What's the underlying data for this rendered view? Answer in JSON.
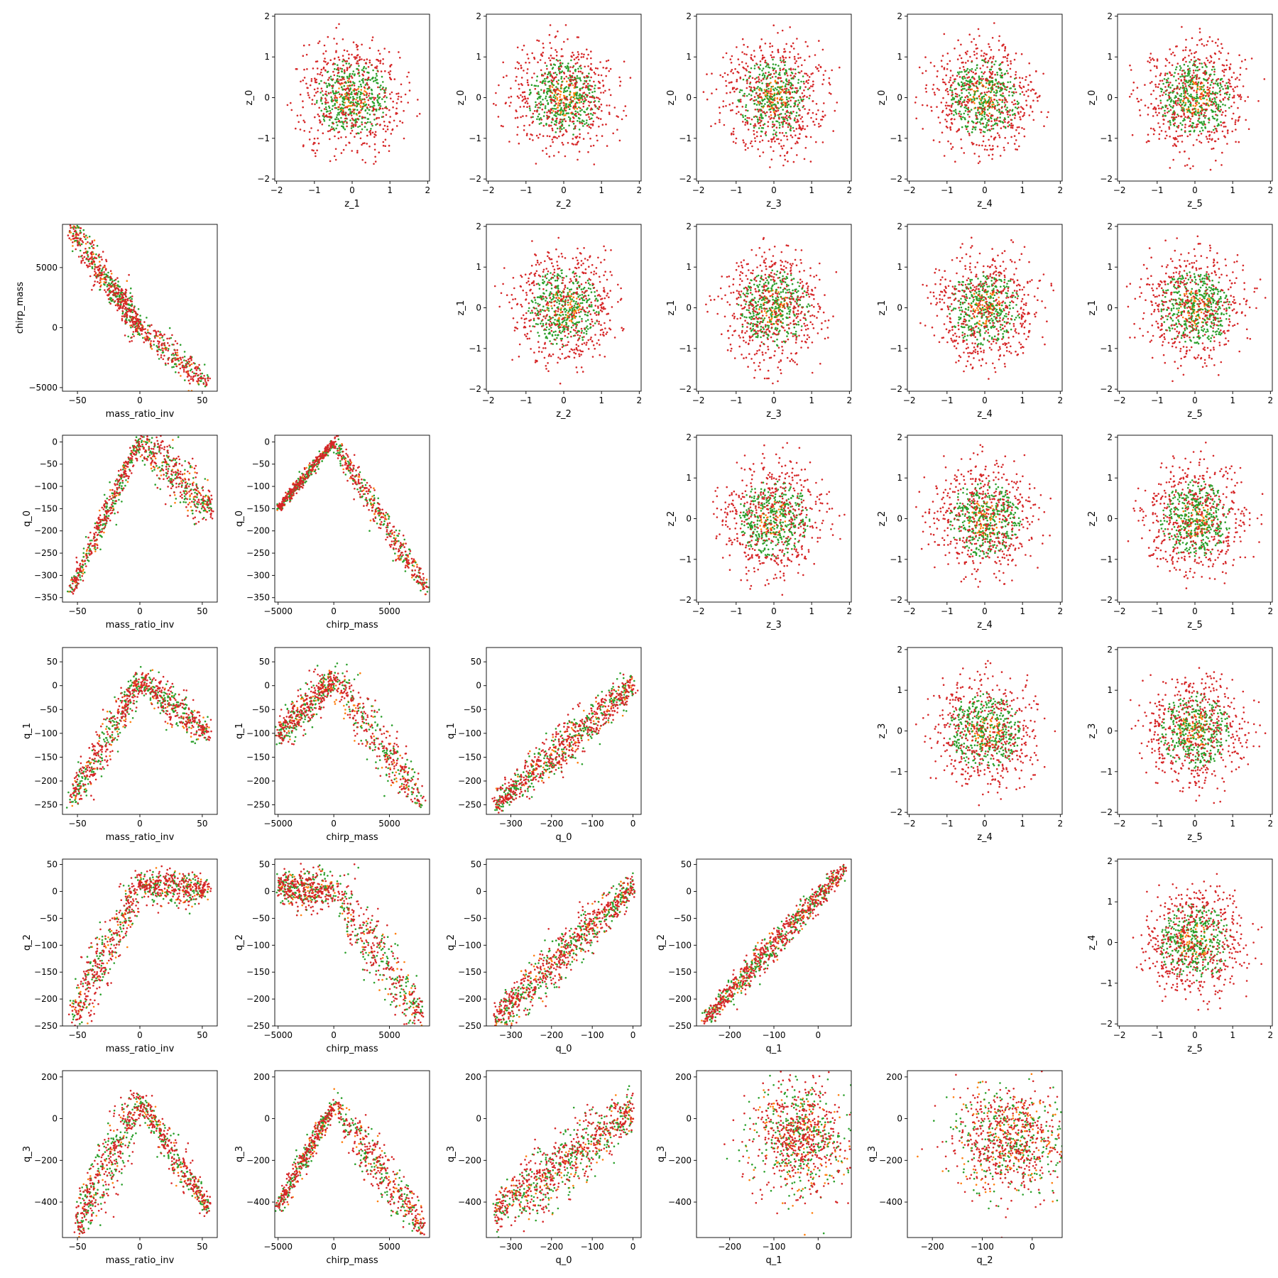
{
  "chart_data": {
    "type": "scatter",
    "layout": "pairplot-grid",
    "grid": false,
    "marker_size": "small",
    "series": [
      {
        "color": "#d62728"
      },
      {
        "color": "#2ca02c"
      },
      {
        "color": "#ff7f0e"
      }
    ],
    "variables": {
      "mass_ratio_inv": {
        "label": "mass_ratio_inv",
        "lim": [
          -62,
          62
        ],
        "ticks": [
          -50,
          0,
          50
        ]
      },
      "chirp_mass": {
        "label": "chirp_mass",
        "lim": [
          -5300,
          8600
        ],
        "ticks": [
          -5000,
          0,
          5000
        ]
      },
      "q_0_x": {
        "label": "q_0",
        "lim": [
          -360,
          20
        ],
        "ticks": [
          -300,
          -200,
          -100,
          0
        ]
      },
      "q_0_y": {
        "label": "q_0",
        "lim": [
          -360,
          15
        ],
        "ticks": [
          0,
          -50,
          -100,
          -150,
          -200,
          -250,
          -300,
          -350
        ]
      },
      "q_1_x": {
        "label": "q_1",
        "lim": [
          -275,
          75
        ],
        "ticks": [
          -200,
          -100,
          0
        ]
      },
      "q_1_y": {
        "label": "q_1",
        "lim": [
          -270,
          80
        ],
        "ticks": [
          50,
          0,
          -50,
          -100,
          -150,
          -200,
          -250
        ]
      },
      "q_2_x": {
        "label": "q_2",
        "lim": [
          -250,
          60
        ],
        "ticks": [
          -200,
          -100,
          0
        ]
      },
      "q_2_y": {
        "label": "q_2",
        "lim": [
          -250,
          60
        ],
        "ticks": [
          50,
          0,
          -50,
          -100,
          -150,
          -200,
          -250
        ]
      },
      "q_3": {
        "label": "q_3",
        "lim": [
          -570,
          230
        ],
        "ticks": [
          200,
          0,
          -200,
          -400
        ]
      },
      "z": {
        "lim": [
          -2.05,
          2.05
        ],
        "ticks": [
          -2,
          -1,
          0,
          1,
          2
        ]
      }
    },
    "panels": [
      {
        "row": 0,
        "col": 1,
        "x": "z_1",
        "y": "z_0",
        "dist": "gauss"
      },
      {
        "row": 0,
        "col": 2,
        "x": "z_2",
        "y": "z_0",
        "dist": "gauss"
      },
      {
        "row": 0,
        "col": 3,
        "x": "z_3",
        "y": "z_0",
        "dist": "gauss"
      },
      {
        "row": 0,
        "col": 4,
        "x": "z_4",
        "y": "z_0",
        "dist": "gauss"
      },
      {
        "row": 0,
        "col": 5,
        "x": "z_5",
        "y": "z_0",
        "dist": "gauss"
      },
      {
        "row": 1,
        "col": 0,
        "x": "mass_ratio_inv",
        "y": "chirp_mass",
        "dist": "lines",
        "segments": [
          [
            -56,
            8400,
            -20,
            3000
          ],
          [
            -20,
            3000,
            0,
            0
          ],
          [
            0,
            0,
            55,
            -4700
          ]
        ],
        "spread": [
          1200,
          1000,
          900
        ]
      },
      {
        "row": 1,
        "col": 2,
        "x": "z_2",
        "y": "z_1",
        "dist": "gauss"
      },
      {
        "row": 1,
        "col": 3,
        "x": "z_3",
        "y": "z_1",
        "dist": "gauss"
      },
      {
        "row": 1,
        "col": 4,
        "x": "z_4",
        "y": "z_1",
        "dist": "gauss"
      },
      {
        "row": 1,
        "col": 5,
        "x": "z_5",
        "y": "z_1",
        "dist": "gauss"
      },
      {
        "row": 2,
        "col": 0,
        "x": "mass_ratio_inv",
        "y": "q_0_y",
        "dist": "lines",
        "segments": [
          [
            -55,
            -330,
            0,
            0
          ],
          [
            0,
            0,
            57,
            -150
          ]
        ],
        "spread": [
          20,
          40
        ]
      },
      {
        "row": 2,
        "col": 1,
        "x": "chirp_mass",
        "y": "q_0_y",
        "dist": "lines",
        "segments": [
          [
            -5000,
            -150,
            0,
            0
          ],
          [
            0,
            0,
            8300,
            -330
          ]
        ],
        "spread": [
          8,
          25
        ]
      },
      {
        "row": 2,
        "col": 3,
        "x": "z_3",
        "y": "z_2",
        "dist": "gauss"
      },
      {
        "row": 2,
        "col": 4,
        "x": "z_4",
        "y": "z_2",
        "dist": "gauss"
      },
      {
        "row": 2,
        "col": 5,
        "x": "z_5",
        "y": "z_2",
        "dist": "gauss"
      },
      {
        "row": 3,
        "col": 0,
        "x": "mass_ratio_inv",
        "y": "q_1_y",
        "dist": "lines",
        "segments": [
          [
            -55,
            -240,
            0,
            10
          ],
          [
            0,
            10,
            55,
            -100
          ]
        ],
        "spread": [
          35,
          25
        ]
      },
      {
        "row": 3,
        "col": 1,
        "x": "chirp_mass",
        "y": "q_1_y",
        "dist": "lines",
        "segments": [
          [
            -5000,
            -100,
            0,
            10
          ],
          [
            0,
            10,
            8000,
            -240
          ]
        ],
        "spread": [
          30,
          40
        ]
      },
      {
        "row": 3,
        "col": 2,
        "x": "q_0_x",
        "y": "q_1_y",
        "dist": "lines",
        "segments": [
          [
            -340,
            -250,
            0,
            0
          ]
        ],
        "spread": [
          30
        ]
      },
      {
        "row": 3,
        "col": 4,
        "x": "z_4",
        "y": "z_3",
        "dist": "gauss"
      },
      {
        "row": 3,
        "col": 5,
        "x": "z_5",
        "y": "z_3",
        "dist": "gauss"
      },
      {
        "row": 4,
        "col": 0,
        "x": "mass_ratio_inv",
        "y": "q_2_y",
        "dist": "lines",
        "segments": [
          [
            -55,
            -235,
            0,
            10
          ],
          [
            0,
            10,
            55,
            5
          ]
        ],
        "spread": [
          40,
          20
        ]
      },
      {
        "row": 4,
        "col": 1,
        "x": "chirp_mass",
        "y": "q_2_y",
        "dist": "lines",
        "segments": [
          [
            -5000,
            10,
            0,
            0
          ],
          [
            0,
            0,
            8000,
            -230
          ]
        ],
        "spread": [
          25,
          45
        ]
      },
      {
        "row": 4,
        "col": 2,
        "x": "q_0_x",
        "y": "q_2_y",
        "dist": "lines",
        "segments": [
          [
            -340,
            -240,
            0,
            10
          ]
        ],
        "spread": [
          30
        ]
      },
      {
        "row": 4,
        "col": 3,
        "x": "q_1_x",
        "y": "q_2_y",
        "dist": "lines",
        "segments": [
          [
            -260,
            -240,
            60,
            40
          ]
        ],
        "spread": [
          18
        ]
      },
      {
        "row": 4,
        "col": 5,
        "x": "z_5",
        "y": "z_4",
        "dist": "gauss"
      },
      {
        "row": 5,
        "col": 0,
        "x": "mass_ratio_inv",
        "y": "q_3",
        "dist": "lines",
        "segments": [
          [
            -50,
            -500,
            0,
            80
          ],
          [
            0,
            80,
            55,
            -430
          ]
        ],
        "spread": [
          120,
          60
        ]
      },
      {
        "row": 5,
        "col": 1,
        "x": "chirp_mass",
        "y": "q_3",
        "dist": "lines",
        "segments": [
          [
            -5000,
            -420,
            0,
            60
          ],
          [
            0,
            60,
            8000,
            -520
          ]
        ],
        "spread": [
          40,
          90
        ]
      },
      {
        "row": 5,
        "col": 2,
        "x": "q_0_x",
        "y": "q_3",
        "dist": "lines",
        "segments": [
          [
            -340,
            -450,
            0,
            20
          ]
        ],
        "spread": [
          110
        ]
      },
      {
        "row": 5,
        "col": 3,
        "x": "q_1_x",
        "y": "q_3",
        "dist": "blob",
        "center": [
          -40,
          -90
        ],
        "sd": [
          55,
          130
        ]
      },
      {
        "row": 5,
        "col": 4,
        "x": "q_2_x",
        "y": "q_3",
        "dist": "blob",
        "center": [
          -45,
          -100
        ],
        "sd": [
          55,
          130
        ]
      }
    ]
  }
}
